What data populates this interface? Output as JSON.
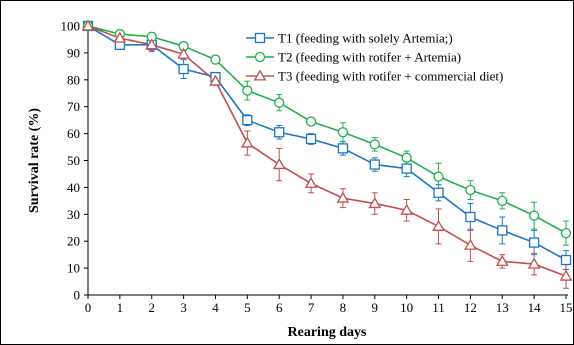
{
  "chart_data": {
    "type": "line",
    "xlabel": "Rearing days",
    "ylabel": "Survival rate (%)",
    "x": [
      0,
      1,
      2,
      3,
      4,
      5,
      6,
      7,
      8,
      9,
      10,
      11,
      12,
      13,
      14,
      15
    ],
    "xlim": [
      0,
      15
    ],
    "ylim": [
      0,
      100
    ],
    "yticks": [
      0,
      10,
      20,
      30,
      40,
      50,
      60,
      70,
      80,
      90,
      100
    ],
    "grid": false,
    "legend_position": "top-right",
    "series": [
      {
        "name": "T1 (feeding with solely Artemia;)",
        "color": "#1f77c4",
        "marker": "square",
        "values": [
          100,
          93,
          93,
          84,
          81,
          65,
          60.5,
          58,
          54.5,
          48.5,
          47,
          38,
          29,
          24,
          19.5,
          13
        ],
        "errors": [
          1,
          1.5,
          2,
          3.5,
          1.5,
          2,
          2.5,
          2,
          2.5,
          2.5,
          3,
          3,
          5,
          5,
          4.5,
          3.5
        ]
      },
      {
        "name": "T2 (feeding with rotifer + Artemia)",
        "color": "#22b14c",
        "marker": "circle",
        "values": [
          100,
          97,
          96,
          92.5,
          87.5,
          76,
          71.5,
          64.5,
          60.5,
          56,
          51,
          44,
          39,
          35,
          29.5,
          23
        ],
        "errors": [
          1,
          1.5,
          1.5,
          1.5,
          1.5,
          3.5,
          3,
          1.5,
          3.5,
          2.5,
          2.5,
          5,
          3.5,
          3,
          5,
          4.5
        ]
      },
      {
        "name": "T3 (feeding with rotifer + commercial diet)",
        "color": "#c0504d",
        "marker": "triangle",
        "values": [
          100,
          95.5,
          93,
          89.5,
          79.5,
          56.5,
          48.5,
          41.5,
          36,
          34,
          31.5,
          25.5,
          18.5,
          12.5,
          11.5,
          7
        ],
        "errors": [
          1,
          2,
          2.5,
          1.5,
          1.5,
          4.5,
          6,
          3.5,
          3.5,
          4,
          4,
          6.5,
          6,
          2.5,
          4,
          4.5
        ]
      }
    ]
  }
}
